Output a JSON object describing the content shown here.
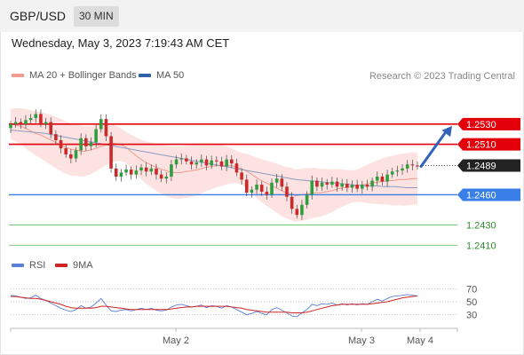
{
  "header": {
    "pair": "GBP/USD",
    "timeframe": "30 MIN"
  },
  "timestamp": "Wednesday, May 3, 2023 7:19:43 AM CET",
  "legend": {
    "bollinger": "MA 20 + Bollinger Bands",
    "ma50": "MA 50",
    "credit": "Research © 2023 Trading Central"
  },
  "rsi_legend": {
    "rsi": "RSI",
    "ma9": "9MA"
  },
  "colors": {
    "resistance": "#e3000b",
    "support": "#3a7ee8",
    "target": "#2e63b8",
    "bull": "#2e9e3e",
    "bear": "#cc2a2a",
    "band": "#fbd9d7",
    "ma20": "#f29a8c",
    "ma50": "#8a9cc4",
    "rsi": "#5a7fd6",
    "rsi_ma": "#d02424",
    "level_green": "#6dbf6d",
    "current_bg": "#222222"
  },
  "chart_data": [
    {
      "type": "candlestick",
      "title": "GBP/USD 30 MIN",
      "x_labels": [
        "May 2",
        "May 3",
        "May 4"
      ],
      "y_range": [
        1.2405,
        1.2565
      ],
      "current_price": "1.2489",
      "levels": [
        {
          "value": 1.253,
          "label": "1.2530",
          "role": "resistance"
        },
        {
          "value": 1.251,
          "label": "1.2510",
          "role": "resistance"
        },
        {
          "value": 1.246,
          "label": "1.2460",
          "role": "support"
        },
        {
          "value": 1.243,
          "label": "1.2430",
          "role": "support-minor"
        },
        {
          "value": 1.241,
          "label": "1.2410",
          "role": "support-minor"
        }
      ],
      "target_arrow": {
        "from": 1.2488,
        "to": 1.253
      },
      "close": [
        1.253,
        1.2532,
        1.253,
        1.2534,
        1.2536,
        1.254,
        1.253,
        1.2532,
        1.252,
        1.2514,
        1.2506,
        1.25,
        1.2496,
        1.2504,
        1.2516,
        1.2508,
        1.2512,
        1.2525,
        1.2535,
        1.2518,
        1.2486,
        1.2478,
        1.2482,
        1.2485,
        1.248,
        1.2484,
        1.2487,
        1.2483,
        1.2486,
        1.248,
        1.2476,
        1.2478,
        1.249,
        1.2495,
        1.2496,
        1.2493,
        1.249,
        1.2492,
        1.2495,
        1.2489,
        1.2494,
        1.2493,
        1.2488,
        1.2495,
        1.2491,
        1.2482,
        1.2475,
        1.2462,
        1.2465,
        1.247,
        1.2463,
        1.246,
        1.2472,
        1.2476,
        1.2468,
        1.2458,
        1.2446,
        1.244,
        1.245,
        1.246,
        1.2474,
        1.2468,
        1.2472,
        1.247,
        1.2473,
        1.2468,
        1.2471,
        1.2467,
        1.247,
        1.2466,
        1.247,
        1.2468,
        1.2474,
        1.2478,
        1.2473,
        1.248,
        1.2483,
        1.2484,
        1.2486,
        1.249,
        1.2489,
        1.2488
      ],
      "ma20": [
        1.253,
        1.2529,
        1.2527,
        1.2524,
        1.2521,
        1.2519,
        1.2516,
        1.2513,
        1.251,
        1.2507,
        1.2505,
        1.2504,
        1.2503,
        1.2504,
        1.2506,
        1.2508,
        1.251,
        1.2511,
        1.251,
        1.2507,
        1.2502,
        1.2497,
        1.2493,
        1.249,
        1.2487,
        1.2485,
        1.2483,
        1.2482,
        1.2482,
        1.2483,
        1.2484,
        1.2485,
        1.2487,
        1.2488,
        1.2489,
        1.2489,
        1.2489,
        1.2488,
        1.2486,
        1.2483,
        1.2479,
        1.2475,
        1.2472,
        1.2469,
        1.2466,
        1.2463,
        1.2461,
        1.2459,
        1.246,
        1.2461,
        1.2462,
        1.2462,
        1.2463,
        1.2464,
        1.2466,
        1.2467,
        1.2468,
        1.2469,
        1.247,
        1.2471,
        1.2472,
        1.2473,
        1.2474,
        1.2474,
        1.2475,
        1.2475,
        1.2476,
        1.2476
      ],
      "ma50": [
        1.2524,
        1.2523,
        1.2522,
        1.2521,
        1.2519,
        1.2517,
        1.2515,
        1.2513,
        1.2511,
        1.2509,
        1.2507,
        1.2505,
        1.2503,
        1.2501,
        1.2499,
        1.2497,
        1.2495,
        1.2493,
        1.2491,
        1.2489,
        1.2487,
        1.2485,
        1.2483,
        1.2481,
        1.2479,
        1.2477,
        1.2475,
        1.2474,
        1.2473,
        1.2472,
        1.2471,
        1.247,
        1.2469,
        1.2469,
        1.2468,
        1.2468,
        1.2467,
        1.2467
      ]
    },
    {
      "type": "line",
      "title": "RSI",
      "y_ticks": [
        70,
        50,
        30
      ],
      "y_range": [
        20,
        80
      ],
      "series": [
        {
          "name": "RSI",
          "values": [
            60,
            59,
            57,
            55,
            56,
            60,
            55,
            52,
            48,
            44,
            40,
            37,
            35,
            38,
            44,
            40,
            42,
            48,
            55,
            45,
            36,
            35,
            37,
            38,
            36,
            38,
            40,
            38,
            40,
            37,
            36,
            37,
            42,
            45,
            46,
            44,
            42,
            43,
            45,
            41,
            44,
            43,
            40,
            44,
            42,
            38,
            34,
            30,
            32,
            35,
            32,
            30,
            38,
            41,
            37,
            33,
            28,
            27,
            33,
            38,
            46,
            44,
            47,
            46,
            48,
            45,
            47,
            45,
            47,
            45,
            47,
            46,
            50,
            54,
            51,
            55,
            58,
            59,
            60,
            61,
            60,
            59
          ]
        },
        {
          "name": "9MA",
          "values": [
            58,
            58,
            57,
            56,
            55,
            55,
            54,
            52,
            50,
            48,
            46,
            43,
            41,
            40,
            40,
            40,
            40,
            41,
            43,
            43,
            42,
            41,
            40,
            39,
            38,
            38,
            38,
            38,
            38,
            38,
            38,
            38,
            39,
            40,
            41,
            42,
            42,
            43,
            43,
            43,
            43,
            43,
            43,
            43,
            42,
            41,
            40,
            38,
            37,
            36,
            35,
            34,
            34,
            34,
            34,
            34,
            33,
            33,
            33,
            34,
            36,
            38,
            40,
            42,
            44,
            45,
            46,
            46,
            46,
            46,
            46,
            46,
            47,
            48,
            49,
            50,
            52,
            54,
            56,
            57,
            58,
            59
          ]
        }
      ]
    }
  ]
}
